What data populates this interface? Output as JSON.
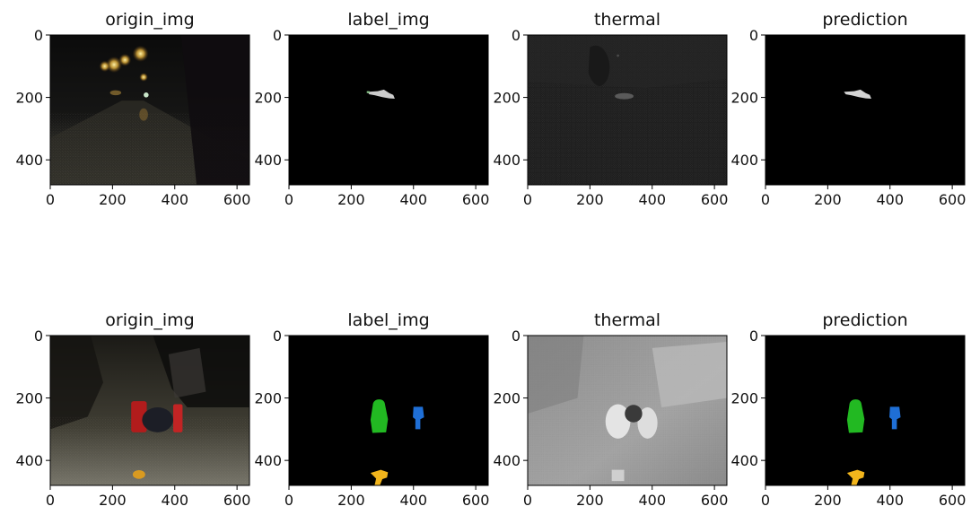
{
  "chart_data": {
    "type": "image_grid",
    "rows": [
      {
        "panels": [
          {
            "title": "origin_img",
            "kind": "rgb_dark_road_scene"
          },
          {
            "title": "label_img",
            "kind": "mask_small_object",
            "colors": [
              "#cccccc",
              "#88c688"
            ]
          },
          {
            "title": "thermal",
            "kind": "thermal_dark"
          },
          {
            "title": "prediction",
            "kind": "mask_small_object",
            "colors": [
              "#d4d4d4"
            ]
          }
        ]
      },
      {
        "panels": [
          {
            "title": "origin_img",
            "kind": "rgb_road_with_objects"
          },
          {
            "title": "label_img",
            "kind": "mask_three_objects",
            "colors": [
              "#22b922",
              "#1f6fd6",
              "#f2b51c"
            ]
          },
          {
            "title": "thermal",
            "kind": "thermal_grey"
          },
          {
            "title": "prediction",
            "kind": "mask_three_objects",
            "colors": [
              "#22b922",
              "#1f6fd6",
              "#f2b51c"
            ]
          }
        ]
      }
    ],
    "xlim": [
      0,
      640
    ],
    "ylim": [
      480,
      0
    ],
    "x_ticks": [
      0,
      200,
      400,
      600
    ],
    "y_ticks": [
      0,
      200,
      400
    ],
    "grid": false
  }
}
